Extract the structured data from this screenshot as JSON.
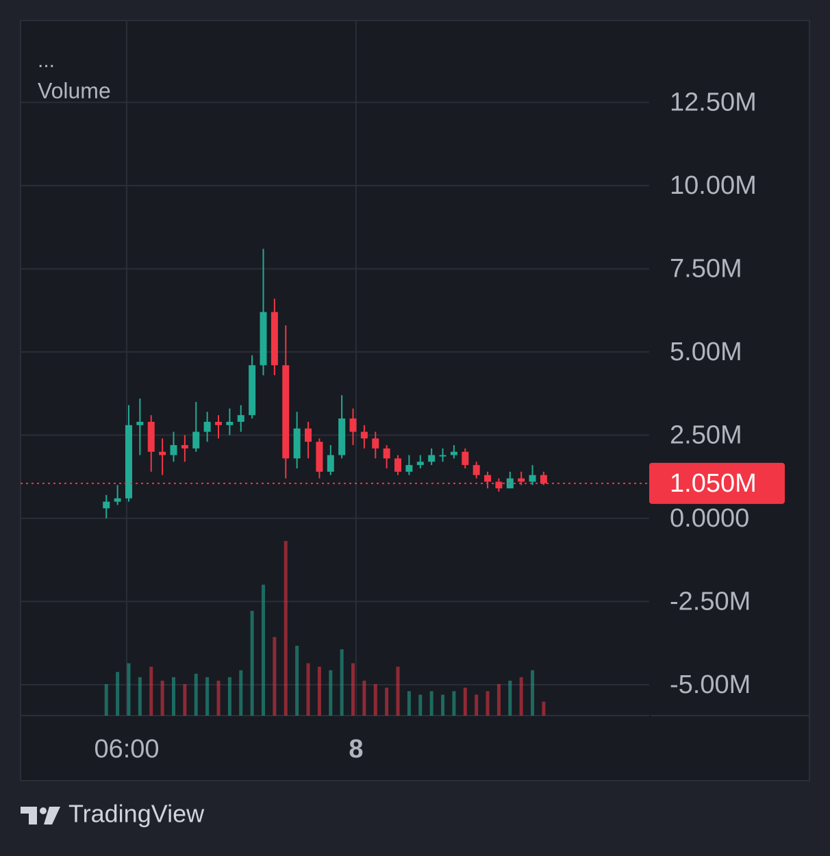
{
  "chart_data": {
    "type": "candlestick",
    "menu": "...",
    "legend_label": "Volume",
    "x": [
      4.4,
      5.28,
      6.16,
      7.04,
      7.92,
      8.8,
      9.68,
      10.56,
      11.44,
      12.32,
      13.2,
      14.08,
      14.96,
      15.84,
      16.72,
      17.6,
      18.48,
      19.36,
      20.24,
      21.12,
      22.0,
      22.88,
      23.76,
      24.64,
      25.52,
      26.4,
      27.28,
      28.16,
      29.04,
      29.92,
      30.8,
      31.68,
      32.56,
      33.44,
      34.32,
      35.2,
      36.08,
      36.96,
      37.84,
      38.72
    ],
    "open": [
      300000,
      500000,
      600000,
      2800000,
      2900000,
      2000000,
      1900000,
      2200000,
      2100000,
      2600000,
      2900000,
      2800000,
      2900000,
      3100000,
      4600000,
      6200000,
      4600000,
      1800000,
      2700000,
      2300000,
      1400000,
      1900000,
      3000000,
      2600000,
      2400000,
      2100000,
      1800000,
      1400000,
      1600000,
      1700000,
      1900000,
      1900000,
      2000000,
      1600000,
      1300000,
      1100000,
      900000,
      1200000,
      1100000,
      1300000
    ],
    "high": [
      700000,
      1000000,
      3400000,
      3600000,
      3100000,
      2400000,
      2600000,
      2500000,
      3500000,
      3200000,
      3100000,
      3300000,
      3400000,
      4900000,
      8100000,
      6600000,
      5800000,
      3200000,
      2900000,
      2400000,
      2200000,
      3700000,
      3300000,
      2800000,
      2600000,
      2200000,
      1900000,
      1900000,
      1900000,
      2100000,
      2100000,
      2200000,
      2100000,
      1700000,
      1400000,
      1200000,
      1400000,
      1400000,
      1600000,
      1400000
    ],
    "low": [
      0,
      400000,
      500000,
      1900000,
      1400000,
      1300000,
      1700000,
      1700000,
      2000000,
      2300000,
      2400000,
      2500000,
      2600000,
      3000000,
      4300000,
      4300000,
      1200000,
      1500000,
      1800000,
      1200000,
      1300000,
      1800000,
      2200000,
      2100000,
      1800000,
      1500000,
      1300000,
      1300000,
      1500000,
      1600000,
      1700000,
      1800000,
      1500000,
      1200000,
      900000,
      800000,
      900000,
      1000000,
      1000000,
      1000000
    ],
    "close": [
      500000,
      600000,
      2800000,
      2900000,
      2000000,
      1900000,
      2200000,
      2100000,
      2600000,
      2900000,
      2800000,
      2900000,
      3100000,
      4600000,
      6200000,
      4600000,
      1800000,
      2700000,
      2300000,
      1400000,
      1900000,
      3000000,
      2600000,
      2400000,
      2100000,
      1800000,
      1400000,
      1600000,
      1700000,
      1900000,
      1900000,
      2000000,
      1600000,
      1300000,
      1100000,
      900000,
      1200000,
      1100000,
      1300000,
      1050000
    ],
    "volume": {
      "axis": "y2",
      "values": [
        18,
        25,
        30,
        22,
        28,
        20,
        22,
        18,
        24,
        22,
        20,
        22,
        26,
        60,
        75,
        45,
        100,
        40,
        30,
        28,
        26,
        38,
        30,
        20,
        18,
        16,
        28,
        14,
        12,
        14,
        12,
        14,
        16,
        12,
        14,
        18,
        20,
        22,
        26,
        8
      ]
    },
    "up_color": "#22ab94",
    "down_color": "#f23645",
    "last_price": {
      "value": 1050000,
      "label": "1.050M"
    },
    "ylim": [
      -5930000,
      14960000
    ],
    "yticks": [
      {
        "value": 12500000,
        "label": "12.50M"
      },
      {
        "value": 10000000,
        "label": "10.00M"
      },
      {
        "value": 7500000,
        "label": "7.50M"
      },
      {
        "value": 5000000,
        "label": "5.00M"
      },
      {
        "value": 2500000,
        "label": "2.50M"
      },
      {
        "value": 0,
        "label": "0.0000"
      },
      {
        "value": -2500000,
        "label": "-2.50M"
      },
      {
        "value": -5000000,
        "label": "-5.00M"
      }
    ],
    "y2lim": [
      0,
      100
    ],
    "xlim": [
      -2.33,
      47.0
    ],
    "xticks": [
      {
        "value": 6,
        "label": "06:00"
      },
      {
        "value": 24,
        "label": "8"
      }
    ],
    "grid": true
  },
  "brand": "TradingView"
}
